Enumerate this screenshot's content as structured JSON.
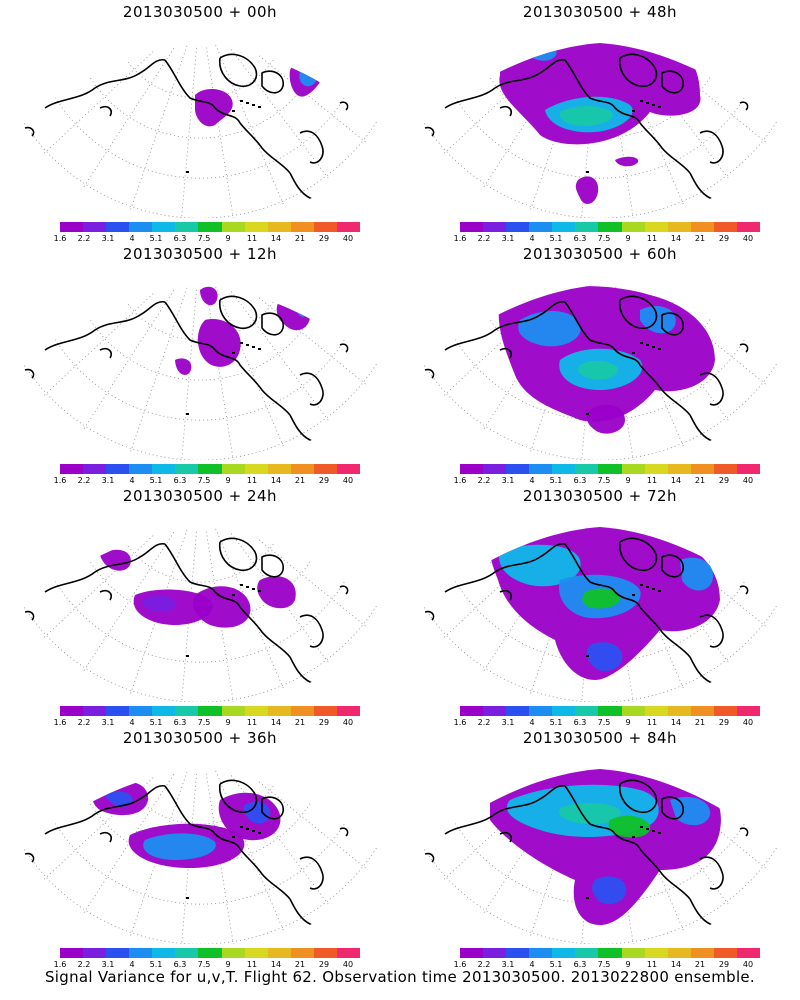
{
  "panels": [
    {
      "title": "2013030500 + 00h"
    },
    {
      "title": "2013030500 + 48h"
    },
    {
      "title": "2013030500 + 12h"
    },
    {
      "title": "2013030500 + 60h"
    },
    {
      "title": "2013030500 + 24h"
    },
    {
      "title": "2013030500 + 72h"
    },
    {
      "title": "2013030500 + 36h"
    },
    {
      "title": "2013030500 + 84h"
    }
  ],
  "colorbar": {
    "labels": [
      "1.6",
      "2.2",
      "3.1",
      "4",
      "5.1",
      "6.3",
      "7.5",
      "9",
      "11",
      "14",
      "21",
      "29",
      "40"
    ],
    "colors": [
      "#9a00c8",
      "#7a1ee0",
      "#2c50f0",
      "#1c8ef0",
      "#10b8e8",
      "#18c8a8",
      "#10c028",
      "#a8d820",
      "#d8d820",
      "#e8b820",
      "#f09020",
      "#f05a28",
      "#f0286e"
    ]
  },
  "caption": "Signal Variance for u,v,T. Flight 62. Observation time 2013030500. 2013022800 ensemble."
}
